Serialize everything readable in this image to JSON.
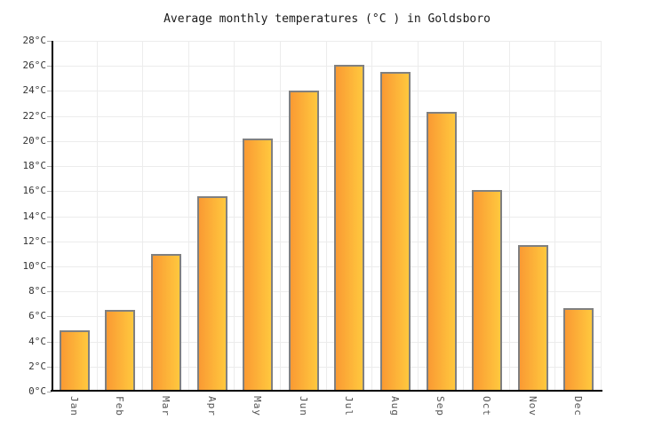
{
  "page": {
    "background": "#ffffff"
  },
  "chart_data": {
    "type": "bar",
    "title": "Average monthly temperatures (°C ) in Goldsboro",
    "categories": [
      "Jan",
      "Feb",
      "Mar",
      "Apr",
      "May",
      "Jun",
      "Jul",
      "Aug",
      "Sep",
      "Oct",
      "Nov",
      "Dec"
    ],
    "values": [
      4.9,
      6.5,
      11.0,
      15.6,
      20.2,
      24.0,
      26.1,
      25.5,
      22.3,
      16.1,
      11.7,
      6.7
    ],
    "unit": "°C",
    "xlabel": "",
    "ylabel": "",
    "ylim": [
      0,
      28
    ],
    "y_tick_step": 2,
    "y_tick_labels": [
      "0°C",
      "2°C",
      "4°C",
      "6°C",
      "8°C",
      "10°C",
      "12°C",
      "14°C",
      "16°C",
      "18°C",
      "20°C",
      "22°C",
      "24°C",
      "26°C",
      "28°C"
    ],
    "grid": true,
    "legend_position": "none",
    "colors": {
      "bar_gradient_left": "#FA9A33",
      "bar_gradient_right": "#FFC83E",
      "bar_border": "#808080",
      "axis": "#000000",
      "gridline": "#ececec",
      "title_text": "#1a1a1a",
      "y_label_text": "#333333",
      "x_label_text": "#555555",
      "background": "#ffffff"
    }
  }
}
